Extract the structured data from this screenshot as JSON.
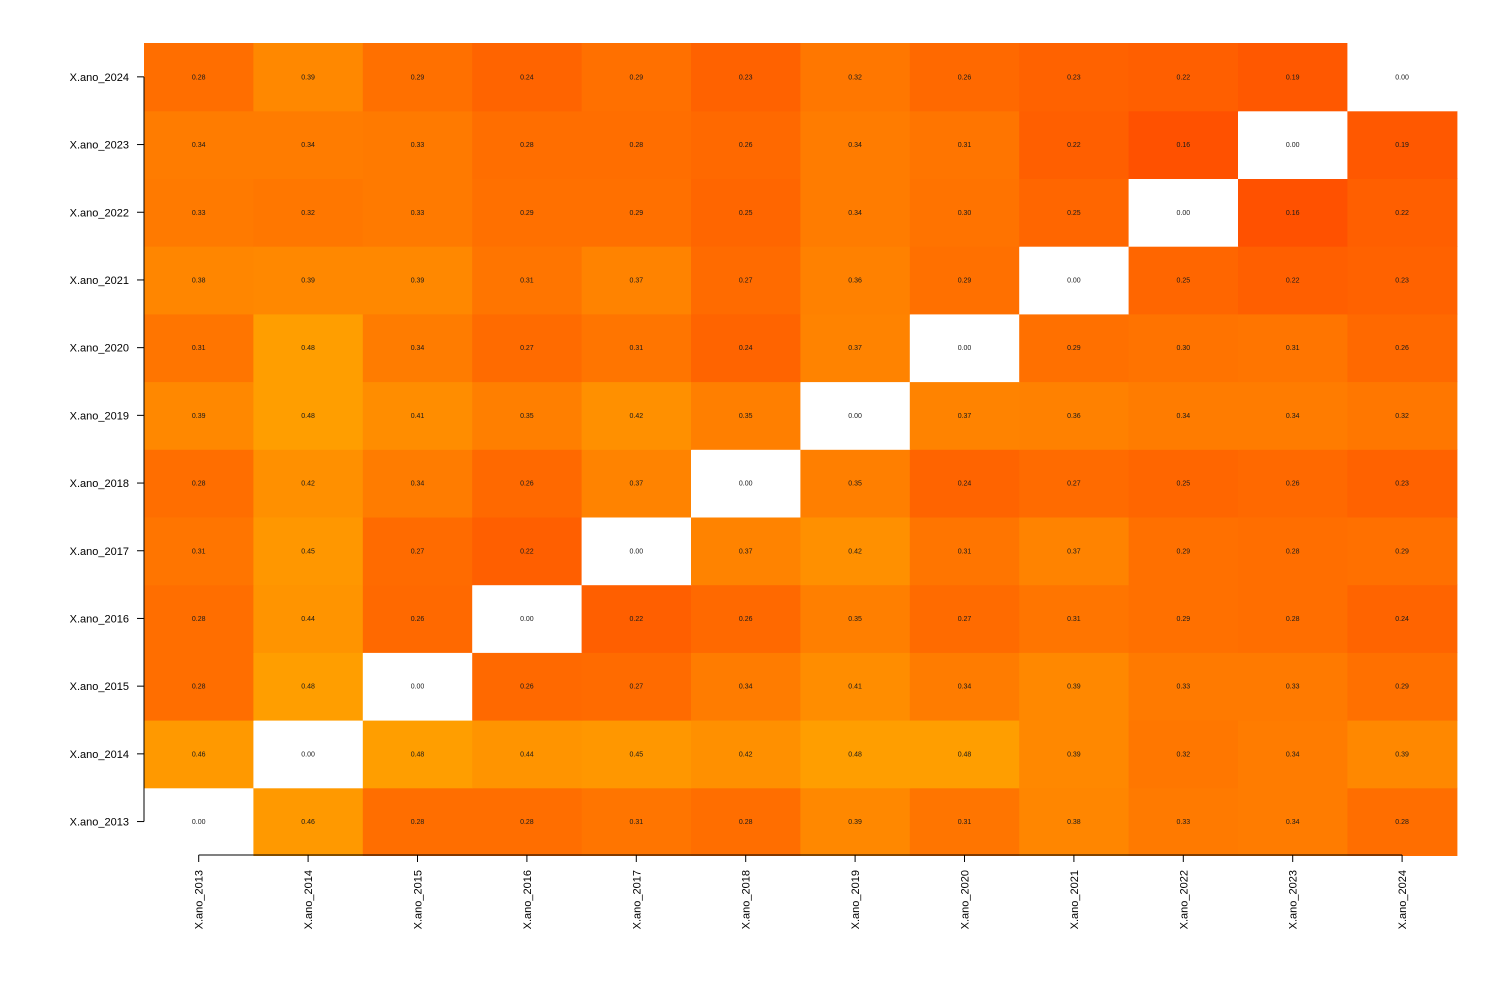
{
  "chart_data": {
    "type": "heatmap",
    "title": "",
    "xlabel": "",
    "ylabel": "",
    "labels": [
      "X.ano_2013",
      "X.ano_2014",
      "X.ano_2015",
      "X.ano_2016",
      "X.ano_2017",
      "X.ano_2018",
      "X.ano_2019",
      "X.ano_2020",
      "X.ano_2021",
      "X.ano_2022",
      "X.ano_2023",
      "X.ano_2024"
    ],
    "value_range": [
      0.0,
      0.48
    ],
    "colors": {
      "low": "#ff2a00",
      "high": "#ff9e00",
      "zero": "#ffffff"
    },
    "matrix": [
      [
        0.0,
        0.46,
        0.28,
        0.28,
        0.31,
        0.28,
        0.39,
        0.31,
        0.38,
        0.33,
        0.34,
        0.28
      ],
      [
        0.46,
        0.0,
        0.48,
        0.44,
        0.45,
        0.42,
        0.48,
        0.48,
        0.39,
        0.32,
        0.34,
        0.39
      ],
      [
        0.28,
        0.48,
        0.0,
        0.26,
        0.27,
        0.34,
        0.41,
        0.34,
        0.39,
        0.33,
        0.33,
        0.29
      ],
      [
        0.28,
        0.44,
        0.26,
        0.0,
        0.22,
        0.26,
        0.35,
        0.27,
        0.31,
        0.29,
        0.28,
        0.24
      ],
      [
        0.31,
        0.45,
        0.27,
        0.22,
        0.0,
        0.37,
        0.42,
        0.31,
        0.37,
        0.29,
        0.28,
        0.29
      ],
      [
        0.28,
        0.42,
        0.34,
        0.26,
        0.37,
        0.0,
        0.35,
        0.24,
        0.27,
        0.25,
        0.26,
        0.23
      ],
      [
        0.39,
        0.48,
        0.41,
        0.35,
        0.42,
        0.35,
        0.0,
        0.37,
        0.36,
        0.34,
        0.34,
        0.32
      ],
      [
        0.31,
        0.48,
        0.34,
        0.27,
        0.31,
        0.24,
        0.37,
        0.0,
        0.29,
        0.3,
        0.31,
        0.26
      ],
      [
        0.38,
        0.39,
        0.39,
        0.31,
        0.37,
        0.27,
        0.36,
        0.29,
        0.0,
        0.25,
        0.22,
        0.23
      ],
      [
        0.33,
        0.32,
        0.33,
        0.29,
        0.29,
        0.25,
        0.34,
        0.3,
        0.25,
        0.0,
        0.16,
        0.22
      ],
      [
        0.34,
        0.34,
        0.33,
        0.28,
        0.28,
        0.26,
        0.34,
        0.31,
        0.22,
        0.16,
        0.0,
        0.19
      ],
      [
        0.28,
        0.39,
        0.29,
        0.24,
        0.29,
        0.23,
        0.32,
        0.26,
        0.23,
        0.22,
        0.19,
        0.0
      ]
    ]
  }
}
